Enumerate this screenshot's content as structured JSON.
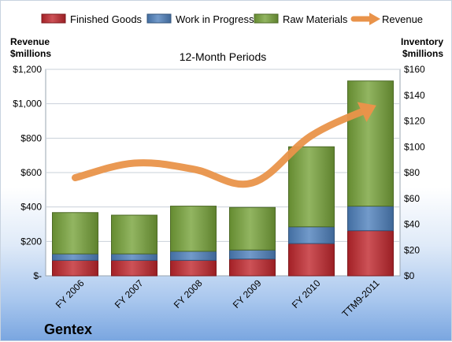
{
  "chart_data": {
    "type": "bar",
    "subtitle": "12-Month Periods",
    "company": "Gentex",
    "categories": [
      "FY 2006",
      "FY 2007",
      "FY 2008",
      "FY 2009",
      "FY 2010",
      "TTM9-2011"
    ],
    "left_axis": {
      "title_line1": "Revenue",
      "title_line2": "$millions",
      "range": [
        0,
        1200
      ],
      "ticks": [
        0,
        200,
        400,
        600,
        800,
        1000,
        1200
      ],
      "tick_labels": [
        "$-",
        "$200",
        "$400",
        "$600",
        "$800",
        "$1,000",
        "$1,200"
      ]
    },
    "right_axis": {
      "title_line1": "Inventory",
      "title_line2": "$millions",
      "range": [
        0,
        160
      ],
      "ticks": [
        0,
        20,
        40,
        60,
        80,
        100,
        120,
        140,
        160
      ],
      "tick_labels": [
        "$0",
        "$20",
        "$40",
        "$60",
        "$80",
        "$100",
        "$120",
        "$140",
        "$160"
      ]
    },
    "series": [
      {
        "name": "Finished Goods",
        "axis": "right",
        "kind": "bar",
        "color": "#c0272d",
        "values": [
          12,
          12,
          12,
          13,
          25,
          35
        ]
      },
      {
        "name": "Work in Progress",
        "axis": "right",
        "kind": "bar",
        "color": "#4f81bd",
        "values": [
          5,
          5,
          7,
          7,
          13,
          19
        ]
      },
      {
        "name": "Raw Materials",
        "axis": "right",
        "kind": "bar",
        "color": "#77a33a",
        "values": [
          32,
          30,
          35,
          33,
          62,
          97
        ]
      },
      {
        "name": "Revenue",
        "axis": "left",
        "kind": "line",
        "color": "#e9934a",
        "values": [
          570,
          655,
          620,
          540,
          815,
          975
        ]
      }
    ],
    "legend_position": "top",
    "grid": true
  }
}
